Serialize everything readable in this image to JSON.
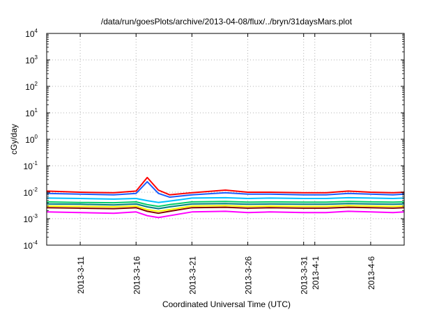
{
  "chart_data": {
    "type": "line",
    "title": "/data/run/goesPlots/archive/2013-04-08/flux/../bryn/31daysMars.plot",
    "xlabel": "Coordinated Universal Time (UTC)",
    "ylabel": "cGy/day",
    "y_scale": "log",
    "xlim": [
      "2013-03-08",
      "2013-04-09"
    ],
    "ylim": [
      0.0001,
      10000
    ],
    "grid": true,
    "legend": "none",
    "y_ticks": [
      {
        "base": "10",
        "exp": "-4",
        "value": 0.0001
      },
      {
        "base": "10",
        "exp": "-3",
        "value": 0.001
      },
      {
        "base": "10",
        "exp": "-2",
        "value": 0.01
      },
      {
        "base": "10",
        "exp": "-1",
        "value": 0.1
      },
      {
        "base": "10",
        "exp": "0",
        "value": 1
      },
      {
        "base": "10",
        "exp": "1",
        "value": 10
      },
      {
        "base": "10",
        "exp": "2",
        "value": 100
      },
      {
        "base": "10",
        "exp": "3",
        "value": 1000
      },
      {
        "base": "10",
        "exp": "4",
        "value": 10000
      }
    ],
    "x_ticks": [
      {
        "label": "2013-3-11",
        "date": "2013-03-11"
      },
      {
        "label": "2013-3-16",
        "date": "2013-03-16"
      },
      {
        "label": "2013-3-21",
        "date": "2013-03-21"
      },
      {
        "label": "2013-3-26",
        "date": "2013-03-26"
      },
      {
        "label": "2013-3-31",
        "date": "2013-03-31"
      },
      {
        "label": "2013-4-1",
        "date": "2013-04-01"
      },
      {
        "label": "2013-4-6",
        "date": "2013-04-06"
      }
    ],
    "series": [
      {
        "color": "#ff00ff",
        "x": [
          "2013-03-08",
          "2013-03-11",
          "2013-03-14",
          "2013-03-16",
          "2013-03-17",
          "2013-03-18",
          "2013-03-19",
          "2013-03-21",
          "2013-03-24",
          "2013-03-26",
          "2013-03-28",
          "2013-03-31",
          "2013-04-02",
          "2013-04-04",
          "2013-04-06",
          "2013-04-08",
          "2013-04-09"
        ],
        "values": [
          0.0018,
          0.0017,
          0.0016,
          0.0018,
          0.0013,
          0.0011,
          0.0013,
          0.0018,
          0.0019,
          0.0017,
          0.0018,
          0.0017,
          0.0017,
          0.0019,
          0.0018,
          0.0017,
          0.0018
        ]
      },
      {
        "color": "#800000",
        "x": [
          "2013-03-08",
          "2013-03-11",
          "2013-03-14",
          "2013-03-16",
          "2013-03-17",
          "2013-03-18",
          "2013-03-19",
          "2013-03-21",
          "2013-03-24",
          "2013-03-26",
          "2013-03-28",
          "2013-03-31",
          "2013-04-02",
          "2013-04-04",
          "2013-04-06",
          "2013-04-08",
          "2013-04-09"
        ],
        "values": [
          0.0026,
          0.0025,
          0.0024,
          0.0026,
          0.0019,
          0.0016,
          0.0019,
          0.0026,
          0.0027,
          0.0025,
          0.0026,
          0.0025,
          0.0025,
          0.0027,
          0.0026,
          0.0025,
          0.0026
        ]
      },
      {
        "color": "#ffff00",
        "x": [
          "2013-03-08",
          "2013-03-11",
          "2013-03-14",
          "2013-03-16",
          "2013-03-17",
          "2013-03-18",
          "2013-03-19",
          "2013-03-21",
          "2013-03-24",
          "2013-03-26",
          "2013-03-28",
          "2013-03-31",
          "2013-04-02",
          "2013-04-04",
          "2013-04-06",
          "2013-04-08",
          "2013-04-09"
        ],
        "values": [
          0.003,
          0.0029,
          0.0028,
          0.003,
          0.0022,
          0.0019,
          0.0022,
          0.003,
          0.0031,
          0.0029,
          0.003,
          0.0029,
          0.0029,
          0.0031,
          0.003,
          0.0029,
          0.003
        ]
      },
      {
        "color": "#008080",
        "x": [
          "2013-03-08",
          "2013-03-11",
          "2013-03-14",
          "2013-03-16",
          "2013-03-17",
          "2013-03-18",
          "2013-03-19",
          "2013-03-21",
          "2013-03-24",
          "2013-03-26",
          "2013-03-28",
          "2013-03-31",
          "2013-04-02",
          "2013-04-04",
          "2013-04-06",
          "2013-04-08",
          "2013-04-09"
        ],
        "values": [
          0.0036,
          0.0035,
          0.0033,
          0.0036,
          0.0028,
          0.0024,
          0.0028,
          0.0036,
          0.0037,
          0.0035,
          0.0036,
          0.0035,
          0.0035,
          0.0037,
          0.0036,
          0.0035,
          0.0036
        ]
      },
      {
        "color": "#00cc66",
        "x": [
          "2013-03-08",
          "2013-03-11",
          "2013-03-14",
          "2013-03-16",
          "2013-03-17",
          "2013-03-18",
          "2013-03-19",
          "2013-03-21",
          "2013-03-24",
          "2013-03-26",
          "2013-03-28",
          "2013-03-31",
          "2013-04-02",
          "2013-04-04",
          "2013-04-06",
          "2013-04-08",
          "2013-04-09"
        ],
        "values": [
          0.0043,
          0.0041,
          0.004,
          0.0043,
          0.0034,
          0.0029,
          0.0034,
          0.0043,
          0.0045,
          0.0042,
          0.0043,
          0.0042,
          0.0042,
          0.0045,
          0.0043,
          0.0042,
          0.0043
        ]
      },
      {
        "color": "#00bfff",
        "x": [
          "2013-03-08",
          "2013-03-11",
          "2013-03-14",
          "2013-03-16",
          "2013-03-17",
          "2013-03-18",
          "2013-03-19",
          "2013-03-21",
          "2013-03-24",
          "2013-03-26",
          "2013-03-28",
          "2013-03-31",
          "2013-04-02",
          "2013-04-04",
          "2013-04-06",
          "2013-04-08",
          "2013-04-09"
        ],
        "values": [
          0.006,
          0.0058,
          0.0055,
          0.0058,
          0.0048,
          0.0041,
          0.0046,
          0.006,
          0.0062,
          0.0058,
          0.006,
          0.0058,
          0.0058,
          0.0062,
          0.006,
          0.0058,
          0.006
        ]
      },
      {
        "color": "#1a5cff",
        "x": [
          "2013-03-08",
          "2013-03-11",
          "2013-03-14",
          "2013-03-16",
          "2013-03-17",
          "2013-03-18",
          "2013-03-19",
          "2013-03-21",
          "2013-03-24",
          "2013-03-26",
          "2013-03-28",
          "2013-03-31",
          "2013-04-02",
          "2013-04-04",
          "2013-04-06",
          "2013-04-08",
          "2013-04-09"
        ],
        "values": [
          0.009,
          0.0085,
          0.008,
          0.009,
          0.025,
          0.009,
          0.0065,
          0.008,
          0.0095,
          0.0085,
          0.0085,
          0.008,
          0.008,
          0.009,
          0.0085,
          0.008,
          0.0085
        ]
      },
      {
        "color": "#ff0000",
        "x": [
          "2013-03-08",
          "2013-03-11",
          "2013-03-14",
          "2013-03-16",
          "2013-03-17",
          "2013-03-18",
          "2013-03-19",
          "2013-03-21",
          "2013-03-24",
          "2013-03-26",
          "2013-03-28",
          "2013-03-31",
          "2013-04-02",
          "2013-04-04",
          "2013-04-06",
          "2013-04-08",
          "2013-04-09"
        ],
        "values": [
          0.011,
          0.01,
          0.0095,
          0.011,
          0.036,
          0.012,
          0.008,
          0.0095,
          0.012,
          0.01,
          0.01,
          0.0095,
          0.0095,
          0.011,
          0.01,
          0.0095,
          0.01
        ]
      }
    ]
  }
}
